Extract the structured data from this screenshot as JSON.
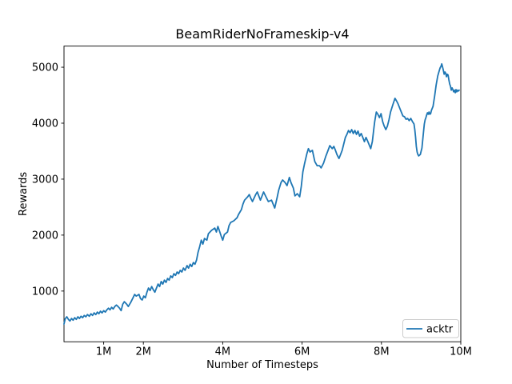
{
  "chart_data": {
    "type": "line",
    "title": "BeamRiderNoFrameskip-v4",
    "xlabel": "Number of Timesteps",
    "ylabel": "Rewards",
    "x_unit": "millions of timesteps",
    "xlim": [
      0,
      10
    ],
    "ylim": [
      94,
      5378
    ],
    "grid": false,
    "x_ticks": [
      {
        "value": 1,
        "label": "1M"
      },
      {
        "value": 2,
        "label": "2M"
      },
      {
        "value": 4,
        "label": "4M"
      },
      {
        "value": 6,
        "label": "6M"
      },
      {
        "value": 8,
        "label": "8M"
      },
      {
        "value": 10,
        "label": "10M"
      }
    ],
    "y_ticks": [
      {
        "value": 1000,
        "label": "1000"
      },
      {
        "value": 2000,
        "label": "2000"
      },
      {
        "value": 3000,
        "label": "3000"
      },
      {
        "value": 4000,
        "label": "4000"
      },
      {
        "value": 5000,
        "label": "5000"
      }
    ],
    "legend": {
      "position": "lower right",
      "entries": [
        {
          "label": "acktr",
          "color": "#1f77b4"
        }
      ]
    },
    "series": [
      {
        "name": "acktr",
        "color": "#1f77b4",
        "points": [
          [
            0.0,
            410
          ],
          [
            0.03,
            505
          ],
          [
            0.07,
            540
          ],
          [
            0.11,
            495
          ],
          [
            0.15,
            465
          ],
          [
            0.19,
            510
          ],
          [
            0.23,
            480
          ],
          [
            0.27,
            525
          ],
          [
            0.31,
            495
          ],
          [
            0.35,
            540
          ],
          [
            0.39,
            510
          ],
          [
            0.43,
            550
          ],
          [
            0.47,
            525
          ],
          [
            0.51,
            565
          ],
          [
            0.55,
            540
          ],
          [
            0.59,
            580
          ],
          [
            0.64,
            550
          ],
          [
            0.68,
            595
          ],
          [
            0.72,
            565
          ],
          [
            0.76,
            610
          ],
          [
            0.8,
            580
          ],
          [
            0.84,
            625
          ],
          [
            0.88,
            595
          ],
          [
            0.92,
            640
          ],
          [
            0.96,
            610
          ],
          [
            1.0,
            650
          ],
          [
            1.04,
            625
          ],
          [
            1.08,
            665
          ],
          [
            1.12,
            695
          ],
          [
            1.16,
            665
          ],
          [
            1.2,
            710
          ],
          [
            1.24,
            680
          ],
          [
            1.28,
            725
          ],
          [
            1.32,
            750
          ],
          [
            1.36,
            725
          ],
          [
            1.4,
            695
          ],
          [
            1.44,
            650
          ],
          [
            1.48,
            765
          ],
          [
            1.52,
            810
          ],
          [
            1.58,
            765
          ],
          [
            1.62,
            725
          ],
          [
            1.68,
            795
          ],
          [
            1.74,
            880
          ],
          [
            1.78,
            940
          ],
          [
            1.82,
            910
          ],
          [
            1.89,
            940
          ],
          [
            1.93,
            865
          ],
          [
            1.97,
            840
          ],
          [
            2.01,
            910
          ],
          [
            2.05,
            880
          ],
          [
            2.09,
            980
          ],
          [
            2.13,
            1055
          ],
          [
            2.17,
            1010
          ],
          [
            2.21,
            1080
          ],
          [
            2.25,
            1025
          ],
          [
            2.29,
            980
          ],
          [
            2.33,
            1055
          ],
          [
            2.37,
            1125
          ],
          [
            2.41,
            1080
          ],
          [
            2.45,
            1170
          ],
          [
            2.49,
            1125
          ],
          [
            2.53,
            1195
          ],
          [
            2.57,
            1155
          ],
          [
            2.61,
            1225
          ],
          [
            2.65,
            1195
          ],
          [
            2.69,
            1270
          ],
          [
            2.73,
            1240
          ],
          [
            2.77,
            1310
          ],
          [
            2.81,
            1280
          ],
          [
            2.85,
            1340
          ],
          [
            2.89,
            1310
          ],
          [
            2.93,
            1370
          ],
          [
            2.97,
            1340
          ],
          [
            3.01,
            1410
          ],
          [
            3.05,
            1370
          ],
          [
            3.1,
            1455
          ],
          [
            3.14,
            1410
          ],
          [
            3.18,
            1480
          ],
          [
            3.22,
            1440
          ],
          [
            3.26,
            1510
          ],
          [
            3.3,
            1480
          ],
          [
            3.34,
            1555
          ],
          [
            3.38,
            1695
          ],
          [
            3.42,
            1795
          ],
          [
            3.46,
            1910
          ],
          [
            3.5,
            1840
          ],
          [
            3.54,
            1940
          ],
          [
            3.6,
            1910
          ],
          [
            3.64,
            2025
          ],
          [
            3.72,
            2085
          ],
          [
            3.8,
            2125
          ],
          [
            3.84,
            2055
          ],
          [
            3.88,
            2155
          ],
          [
            3.96,
            1985
          ],
          [
            4.0,
            1910
          ],
          [
            4.04,
            2010
          ],
          [
            4.12,
            2055
          ],
          [
            4.16,
            2170
          ],
          [
            4.2,
            2225
          ],
          [
            4.28,
            2255
          ],
          [
            4.36,
            2310
          ],
          [
            4.4,
            2370
          ],
          [
            4.47,
            2455
          ],
          [
            4.51,
            2555
          ],
          [
            4.55,
            2625
          ],
          [
            4.63,
            2685
          ],
          [
            4.67,
            2725
          ],
          [
            4.71,
            2655
          ],
          [
            4.75,
            2600
          ],
          [
            4.83,
            2725
          ],
          [
            4.87,
            2770
          ],
          [
            4.95,
            2625
          ],
          [
            5.03,
            2770
          ],
          [
            5.11,
            2655
          ],
          [
            5.15,
            2600
          ],
          [
            5.23,
            2625
          ],
          [
            5.31,
            2485
          ],
          [
            5.37,
            2670
          ],
          [
            5.41,
            2800
          ],
          [
            5.47,
            2940
          ],
          [
            5.51,
            2985
          ],
          [
            5.57,
            2940
          ],
          [
            5.62,
            2885
          ],
          [
            5.68,
            3030
          ],
          [
            5.72,
            2940
          ],
          [
            5.78,
            2840
          ],
          [
            5.82,
            2700
          ],
          [
            5.88,
            2740
          ],
          [
            5.94,
            2685
          ],
          [
            5.98,
            2870
          ],
          [
            6.02,
            3130
          ],
          [
            6.06,
            3270
          ],
          [
            6.12,
            3455
          ],
          [
            6.16,
            3545
          ],
          [
            6.2,
            3485
          ],
          [
            6.26,
            3515
          ],
          [
            6.32,
            3315
          ],
          [
            6.38,
            3240
          ],
          [
            6.44,
            3240
          ],
          [
            6.48,
            3200
          ],
          [
            6.54,
            3285
          ],
          [
            6.6,
            3415
          ],
          [
            6.64,
            3485
          ],
          [
            6.7,
            3600
          ],
          [
            6.76,
            3545
          ],
          [
            6.8,
            3585
          ],
          [
            6.84,
            3515
          ],
          [
            6.88,
            3440
          ],
          [
            6.93,
            3370
          ],
          [
            6.97,
            3440
          ],
          [
            7.01,
            3515
          ],
          [
            7.05,
            3630
          ],
          [
            7.09,
            3745
          ],
          [
            7.13,
            3800
          ],
          [
            7.17,
            3870
          ],
          [
            7.21,
            3830
          ],
          [
            7.25,
            3885
          ],
          [
            7.29,
            3815
          ],
          [
            7.33,
            3870
          ],
          [
            7.37,
            3800
          ],
          [
            7.41,
            3860
          ],
          [
            7.45,
            3770
          ],
          [
            7.49,
            3815
          ],
          [
            7.53,
            3745
          ],
          [
            7.57,
            3670
          ],
          [
            7.61,
            3745
          ],
          [
            7.65,
            3685
          ],
          [
            7.69,
            3615
          ],
          [
            7.73,
            3545
          ],
          [
            7.77,
            3670
          ],
          [
            7.81,
            3915
          ],
          [
            7.83,
            4030
          ],
          [
            7.87,
            4200
          ],
          [
            7.91,
            4160
          ],
          [
            7.95,
            4100
          ],
          [
            7.99,
            4170
          ],
          [
            8.03,
            4030
          ],
          [
            8.07,
            3945
          ],
          [
            8.11,
            3885
          ],
          [
            8.15,
            3945
          ],
          [
            8.19,
            4060
          ],
          [
            8.23,
            4200
          ],
          [
            8.28,
            4315
          ],
          [
            8.32,
            4400
          ],
          [
            8.34,
            4445
          ],
          [
            8.38,
            4400
          ],
          [
            8.42,
            4345
          ],
          [
            8.46,
            4270
          ],
          [
            8.5,
            4200
          ],
          [
            8.54,
            4130
          ],
          [
            8.58,
            4115
          ],
          [
            8.62,
            4070
          ],
          [
            8.66,
            4085
          ],
          [
            8.7,
            4045
          ],
          [
            8.74,
            4085
          ],
          [
            8.78,
            4030
          ],
          [
            8.82,
            3985
          ],
          [
            8.84,
            3885
          ],
          [
            8.86,
            3745
          ],
          [
            8.88,
            3585
          ],
          [
            8.9,
            3485
          ],
          [
            8.92,
            3440
          ],
          [
            8.94,
            3415
          ],
          [
            8.96,
            3430
          ],
          [
            8.98,
            3440
          ],
          [
            9.0,
            3500
          ],
          [
            9.02,
            3555
          ],
          [
            9.04,
            3700
          ],
          [
            9.06,
            3845
          ],
          [
            9.08,
            3985
          ],
          [
            9.1,
            4060
          ],
          [
            9.12,
            4100
          ],
          [
            9.14,
            4145
          ],
          [
            9.16,
            4185
          ],
          [
            9.18,
            4160
          ],
          [
            9.2,
            4200
          ],
          [
            9.22,
            4160
          ],
          [
            9.24,
            4170
          ],
          [
            9.26,
            4230
          ],
          [
            9.3,
            4300
          ],
          [
            9.34,
            4485
          ],
          [
            9.38,
            4685
          ],
          [
            9.42,
            4845
          ],
          [
            9.46,
            4945
          ],
          [
            9.48,
            4990
          ],
          [
            9.5,
            5015
          ],
          [
            9.52,
            5060
          ],
          [
            9.54,
            5005
          ],
          [
            9.56,
            4945
          ],
          [
            9.58,
            4875
          ],
          [
            9.6,
            4915
          ],
          [
            9.62,
            4890
          ],
          [
            9.64,
            4830
          ],
          [
            9.66,
            4875
          ],
          [
            9.68,
            4860
          ],
          [
            9.7,
            4775
          ],
          [
            9.72,
            4700
          ],
          [
            9.74,
            4660
          ],
          [
            9.76,
            4590
          ],
          [
            9.78,
            4630
          ],
          [
            9.8,
            4600
          ],
          [
            9.82,
            4560
          ],
          [
            9.84,
            4590
          ],
          [
            9.86,
            4545
          ],
          [
            9.88,
            4600
          ],
          [
            9.9,
            4560
          ],
          [
            9.92,
            4590
          ],
          [
            9.94,
            4575
          ],
          [
            9.96,
            4590
          ]
        ]
      }
    ]
  }
}
